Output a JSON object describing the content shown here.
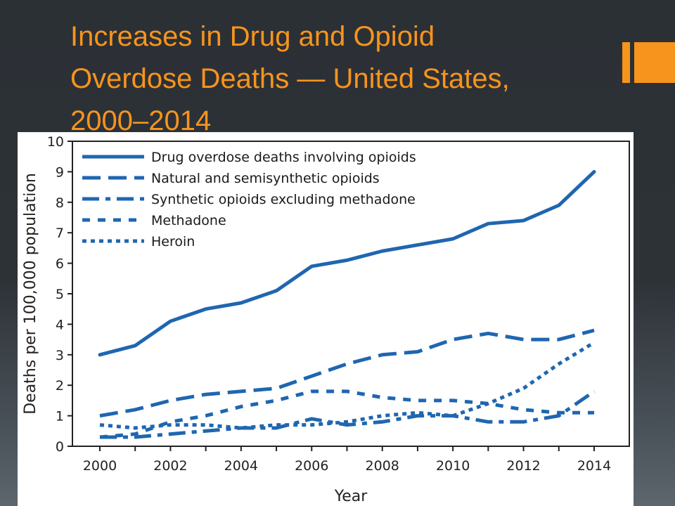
{
  "slide": {
    "title": "Increases in Drug and Opioid Overdose Deaths — United States, 2000–2014",
    "colors": {
      "title": "#f7941d",
      "accent": "#f7941d",
      "line": "#1f66b0"
    }
  },
  "chart_data": {
    "type": "line",
    "title": "",
    "xlabel": "Year",
    "ylabel": "Deaths per 100,000 population",
    "x": [
      2000,
      2001,
      2002,
      2003,
      2004,
      2005,
      2006,
      2007,
      2008,
      2009,
      2010,
      2011,
      2012,
      2013,
      2014
    ],
    "xticks": [
      "2000",
      "2002",
      "2004",
      "2006",
      "2008",
      "2010",
      "2012",
      "2014"
    ],
    "yticks": [
      "0",
      "1",
      "2",
      "3",
      "4",
      "5",
      "6",
      "7",
      "8",
      "9",
      "10"
    ],
    "xlim": [
      2000,
      2014
    ],
    "ylim": [
      0,
      10
    ],
    "grid": false,
    "legend_position": "top-left",
    "series": [
      {
        "name": "Drug overdose deaths involving opioids",
        "style": "solid",
        "values": [
          3.0,
          3.3,
          4.1,
          4.5,
          4.7,
          5.1,
          5.9,
          6.1,
          6.4,
          6.6,
          6.8,
          7.3,
          7.4,
          7.9,
          9.0
        ]
      },
      {
        "name": "Natural and semisynthetic opioids",
        "style": "dashed",
        "values": [
          1.0,
          1.2,
          1.5,
          1.7,
          1.8,
          1.9,
          2.3,
          2.7,
          3.0,
          3.1,
          3.5,
          3.7,
          3.5,
          3.5,
          3.8
        ]
      },
      {
        "name": "Synthetic opioids excluding methadone",
        "style": "dashdot",
        "values": [
          0.3,
          0.3,
          0.4,
          0.5,
          0.6,
          0.6,
          0.9,
          0.7,
          0.8,
          1.0,
          1.0,
          0.8,
          0.8,
          1.0,
          1.8
        ]
      },
      {
        "name": "Methadone",
        "style": "square-dotted",
        "values": [
          0.3,
          0.4,
          0.8,
          1.0,
          1.3,
          1.5,
          1.8,
          1.8,
          1.6,
          1.5,
          1.5,
          1.4,
          1.2,
          1.1,
          1.1
        ]
      },
      {
        "name": "Heroin",
        "style": "dotted",
        "values": [
          0.7,
          0.6,
          0.7,
          0.7,
          0.6,
          0.7,
          0.7,
          0.8,
          1.0,
          1.1,
          1.0,
          1.4,
          1.9,
          2.7,
          3.4
        ]
      }
    ]
  }
}
